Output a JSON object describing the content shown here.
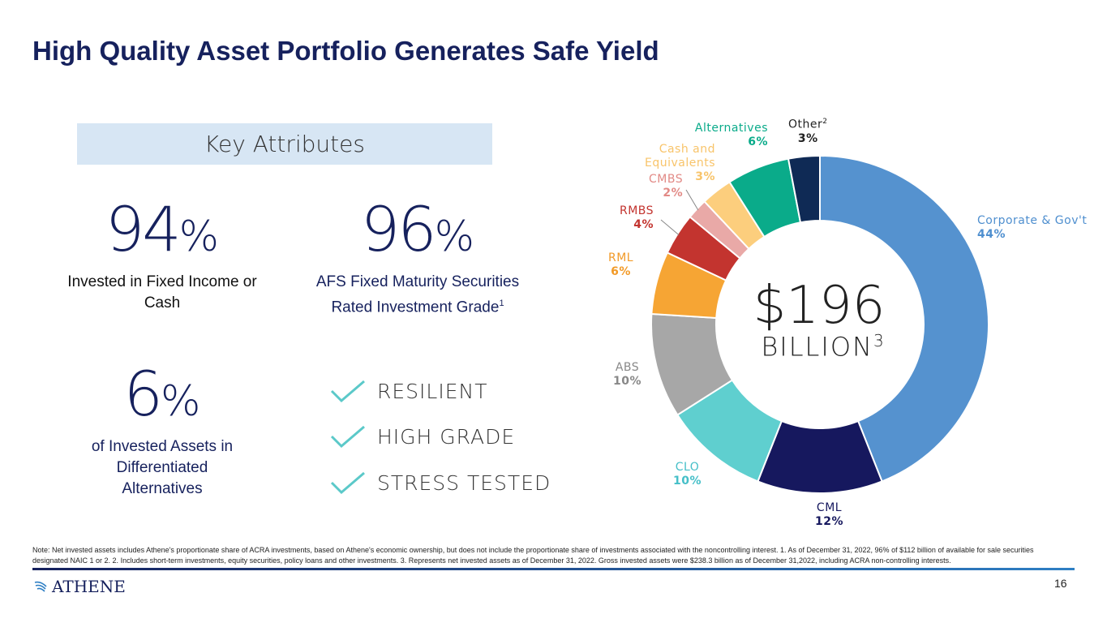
{
  "title": "High Quality Asset Portfolio Generates Safe Yield",
  "key_attributes": {
    "heading": "Key Attributes",
    "stats": [
      {
        "value": "94",
        "unit": "%",
        "desc_line1": "Invested in Fixed Income or",
        "desc_line2": "Cash",
        "color": "#111111"
      },
      {
        "value": "96",
        "unit": "%",
        "desc_line1": "AFS Fixed Maturity Securities",
        "desc_line2": "Rated Investment Grade",
        "footnote": "1",
        "color": "#16215d"
      },
      {
        "value": "6",
        "unit": "%",
        "desc_line1": "of Invested Assets in",
        "desc_line2": "Differentiated",
        "desc_line3": "Alternatives",
        "color": "#16215d"
      }
    ],
    "checks": [
      "RESILIENT",
      "HIGH GRADE",
      "STRESS TESTED"
    ],
    "check_color": "#5bc9c9"
  },
  "chart_data": {
    "type": "pie",
    "style": "donut",
    "center_value": "$196",
    "center_unit": "BILLION",
    "center_footnote": "3",
    "unit": "%",
    "slices": [
      {
        "name": "Corporate & Gov't",
        "value": 44,
        "label": "44%",
        "color": "#5592cf"
      },
      {
        "name": "CML",
        "value": 12,
        "label": "12%",
        "color": "#16185e"
      },
      {
        "name": "CLO",
        "value": 10,
        "label": "10%",
        "color": "#5fcfcf"
      },
      {
        "name": "ABS",
        "value": 10,
        "label": "10%",
        "color": "#a7a7a7"
      },
      {
        "name": "RML",
        "value": 6,
        "label": "6%",
        "color": "#f6a534"
      },
      {
        "name": "RMBS",
        "value": 4,
        "label": "4%",
        "color": "#c3342f"
      },
      {
        "name": "CMBS",
        "value": 2,
        "label": "2%",
        "color": "#e9a9a7"
      },
      {
        "name": "Cash and Equivalents",
        "value": 3,
        "label": "3%",
        "color": "#fcce7d"
      },
      {
        "name": "Alternatives",
        "value": 6,
        "label": "6%",
        "color": "#0aab8a"
      },
      {
        "name": "Other",
        "footnote": "2",
        "value": 3,
        "label": "3%",
        "color": "#0f2a55"
      }
    ]
  },
  "note": "Note: Net invested assets includes Athene's proportionate share of ACRA investments, based on Athene's economic ownership, but does not include the proportionate share of investments associated with the noncontrolling interest.  1. As of December 31, 2022, 96% of $112 billion of available for sale securities designated NAIC 1 or 2.  2. Includes short-term investments, equity securities, policy loans and other investments.  3. Represents net invested assets as of December 31, 2022. Gross invested assets were $238.3 billion as of December 31,2022, including ACRA non-controlling interests.",
  "logo_text": "ATHENE",
  "page_number": "16"
}
